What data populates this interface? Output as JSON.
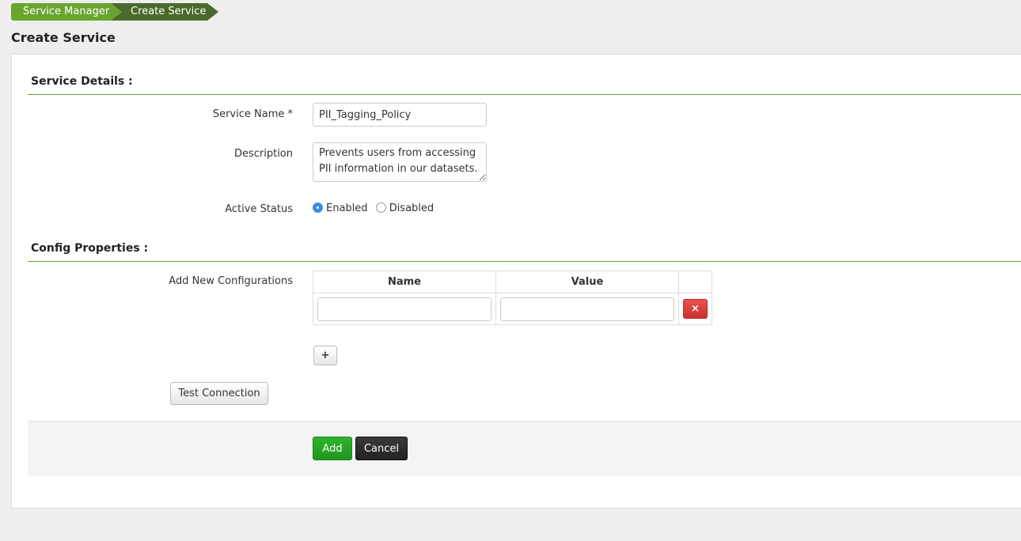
{
  "breadcrumb": [
    "Service Manager",
    "Create Service"
  ],
  "title": "Create Service",
  "service_details": {
    "heading": "Service Details :",
    "name_label": "Service Name *",
    "name_value": "PII_Tagging_Policy",
    "desc_label": "Description",
    "desc_value": "Prevents users from accessing PII information in our datasets.",
    "status_label": "Active Status",
    "status_options": [
      "Enabled",
      "Disabled"
    ],
    "status_selected": "Enabled"
  },
  "config": {
    "heading": "Config Properties :",
    "add_label": "Add New Configurations",
    "columns": [
      "Name",
      "Value"
    ],
    "rows": [
      {
        "name": "",
        "value": ""
      }
    ],
    "remove_icon": "×",
    "add_row_icon": "+",
    "test_connection": "Test Connection"
  },
  "footer": {
    "add": "Add",
    "cancel": "Cancel"
  },
  "colors": {
    "accent": "#6aa42f",
    "danger": "#d9413d",
    "primary": "#24a424",
    "dark": "#2b2b2b"
  }
}
